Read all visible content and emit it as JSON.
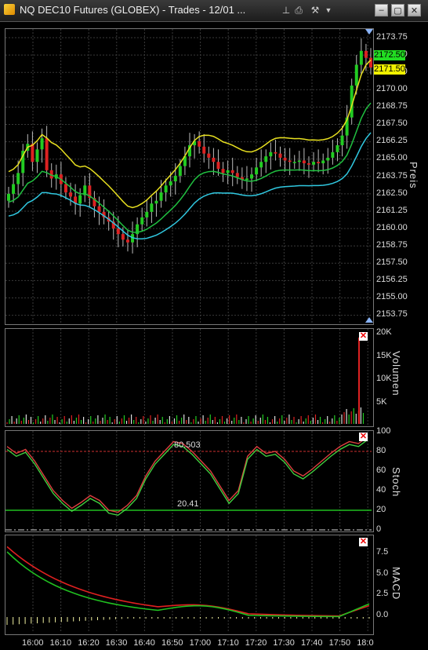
{
  "window": {
    "title": "NQ DEC10 Futures (GLOBEX) - Trades - 12/01 ...",
    "toolbar_icons": [
      "pin-icon",
      "print-icon",
      "tools-icon",
      "dropdown-icon"
    ],
    "window_buttons": [
      "minimize-icon",
      "maximize-icon",
      "close-icon"
    ]
  },
  "price_panel": {
    "label": "Preis",
    "ticks": [
      "2173.75",
      "2172.50",
      "2171.50",
      "2170.00",
      "2168.75",
      "2167.50",
      "2166.25",
      "2165.00",
      "2163.75",
      "2162.50",
      "2161.25",
      "2160.00",
      "2158.75",
      "2157.50",
      "2156.25",
      "2155.00",
      "2153.75"
    ],
    "last_price": "2172.50",
    "last_price_color": "#22dd22",
    "bid_price": "2171.50",
    "bid_price_color": "#f0f000"
  },
  "volume_panel": {
    "label": "Volumen",
    "ticks": [
      "20K",
      "15K",
      "10K",
      "5K"
    ]
  },
  "stoch_panel": {
    "label": "Stoch",
    "ticks": [
      "100",
      "80",
      "60",
      "40",
      "20",
      "0"
    ],
    "upper_level_text": "80.503",
    "lower_level_text": "20.41",
    "upper_color": "#d03030",
    "lower_color": "#20c020"
  },
  "macd_panel": {
    "label": "MACD",
    "ticks": [
      "7.5",
      "5.0",
      "2.5",
      "0.0"
    ]
  },
  "time_axis": {
    "labels": [
      "16:00",
      "16:10",
      "16:20",
      "16:30",
      "16:40",
      "16:50",
      "17:00",
      "17:10",
      "17:20",
      "17:30",
      "17:40",
      "17:50",
      "18:0"
    ]
  },
  "colors": {
    "up_candle": "#22cc22",
    "down_candle": "#dd2222",
    "upper_band": "#e8e020",
    "mid_band": "#20c040",
    "lower_band": "#30c8e0"
  }
}
